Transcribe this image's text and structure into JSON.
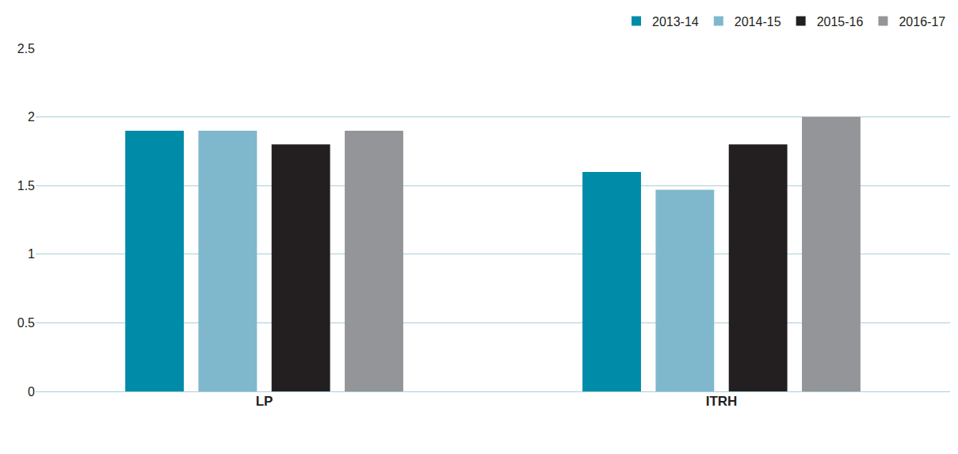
{
  "chart_data": {
    "type": "bar",
    "categories": [
      "LP",
      "ITRH"
    ],
    "series": [
      {
        "name": "2013-14",
        "color": "#008ba8",
        "values": [
          1.9,
          1.6
        ]
      },
      {
        "name": "2014-15",
        "color": "#7fb8cc",
        "values": [
          1.9,
          1.47
        ]
      },
      {
        "name": "2015-16",
        "color": "#231f20",
        "values": [
          1.8,
          1.8
        ]
      },
      {
        "name": "2016-17",
        "color": "#939598",
        "values": [
          1.9,
          2.0
        ]
      }
    ],
    "ylim": [
      0,
      2.5
    ],
    "yticks": [
      0,
      0.5,
      1,
      1.5,
      2,
      2.5
    ],
    "grid": true,
    "legend": "top-right"
  }
}
